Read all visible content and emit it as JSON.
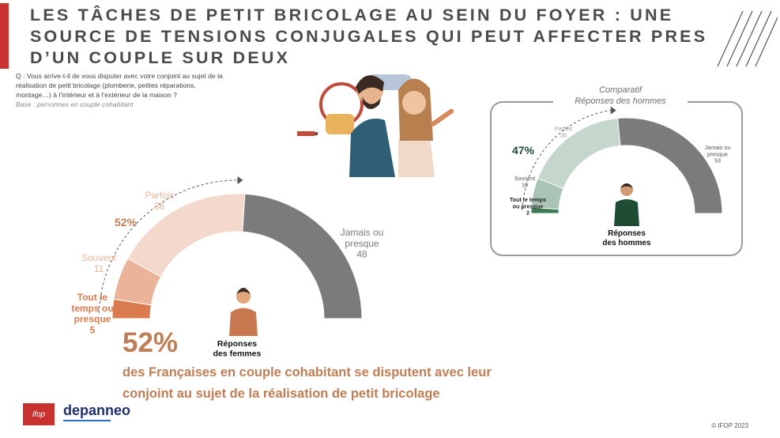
{
  "title_lines": [
    "LES TÂCHES DE PETIT BRICOLAGE AU SEIN DU FOYER : UNE",
    "SOURCE DE TENSIONS CONJUGALES QUI PEUT AFFECTER PRES",
    "D’UN COUPLE SUR DEUX"
  ],
  "question": {
    "lines": [
      "Q : Vous arrive-t-il de vous disputer avec votre conjoint au sujet de la",
      "réalisation de petit bricolage (plomberie, petites réparations,",
      "montage…) à l’intérieur et à l’extérieur de la maison ?"
    ],
    "base": "Base : personnes en couple cohabitant"
  },
  "headline": {
    "pct": "52%",
    "line1": "des Françaises en couple cohabitant se disputent avec leur",
    "line2": "conjoint au sujet de la réalisation de petit bricolage"
  },
  "men_panel_title": [
    "Comparatif",
    "Réponses des hommes"
  ],
  "colors": {
    "red": "#c8312f",
    "accent_women": "#bf7e55",
    "gray": "#7b7b7b",
    "women": [
      "#d97b4f",
      "#ebb49a",
      "#f3d8cb"
    ],
    "men": [
      "#3a7a55",
      "#a9c4b6",
      "#c5d6cd"
    ]
  },
  "chart_data": [
    {
      "type": "pie",
      "title": "Réponses des femmes",
      "subtitle_label": "52%",
      "categories": [
        "Tout le temps ou presque",
        "Souvent",
        "Parfois",
        "Jamais ou presque"
      ],
      "values": [
        5,
        11,
        36,
        48
      ],
      "label_lines": [
        [
          "Tout le",
          "temps ou",
          "presque",
          "5"
        ],
        [
          "Souvent",
          "11"
        ],
        [
          "Parfois",
          "36"
        ],
        [
          "Jamais ou",
          "presque",
          "48"
        ]
      ]
    },
    {
      "type": "pie",
      "title": "Réponses des hommes",
      "subtitle_label": "47%",
      "categories": [
        "Tout le temps ou presque",
        "Souvent",
        "Parfois",
        "Jamais ou presque"
      ],
      "values": [
        2,
        10,
        35,
        53
      ],
      "label_lines": [
        [
          "Tout le temps",
          "ou presque",
          "2"
        ],
        [
          "Souvent",
          "10"
        ],
        [
          "Parfois",
          "35"
        ],
        [
          "Jamais ou",
          "presque",
          "53"
        ]
      ]
    }
  ],
  "logos": {
    "ifop": "ifop",
    "depanneo": "depanneo"
  },
  "copyright": "© IFOP 2023"
}
